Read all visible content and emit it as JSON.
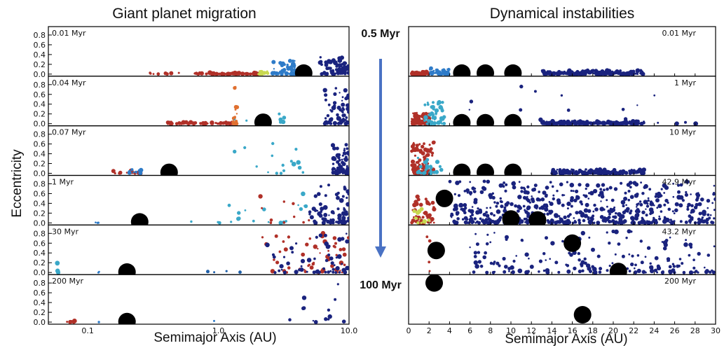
{
  "chart_data": [
    {
      "type": "scatter",
      "title": "Giant planet migration",
      "xlabel": "Semimajor Axis (AU)",
      "ylabel": "Eccentricity",
      "xscale": "log",
      "xlim": [
        0.05,
        10.0
      ],
      "ylim": [
        0,
        0.9
      ],
      "x_ticks": [
        "0.1",
        "1.0",
        "10.0"
      ],
      "y_ticks": [
        "0.0",
        "0.2",
        "0.4",
        "0.6",
        "0.8"
      ],
      "panels": [
        {
          "label": "0.01 Myr",
          "giant_planets": [
            {
              "a": 4.5,
              "e": 0.02
            }
          ],
          "clusters": [
            {
              "amin": 0.3,
              "amax": 2.1,
              "emax": 0.03,
              "n": 70,
              "color": "#b03028"
            },
            {
              "amin": 2.0,
              "amax": 2.6,
              "emax": 0.06,
              "n": 14,
              "color": "#c8d850"
            },
            {
              "amin": 2.5,
              "amax": 3.9,
              "emax": 0.3,
              "n": 45,
              "color": "#2e7bc8"
            },
            {
              "amin": 6.0,
              "amax": 10.0,
              "emax": 0.35,
              "n": 80,
              "color": "#1a237e"
            }
          ]
        },
        {
          "label": "0.04 Myr",
          "giant_planets": [
            {
              "a": 2.2,
              "e": 0.03
            }
          ],
          "clusters": [
            {
              "amin": 0.4,
              "amax": 1.3,
              "emax": 0.03,
              "n": 55,
              "color": "#b03028"
            },
            {
              "amin": 1.3,
              "amax": 1.4,
              "emax": 0.8,
              "n": 18,
              "color": "#e07030"
            },
            {
              "amin": 1.3,
              "amax": 3.5,
              "emax": 0.3,
              "n": 10,
              "color": "#3aa8c8"
            },
            {
              "amin": 6.5,
              "amax": 10.0,
              "emax": 0.75,
              "n": 70,
              "color": "#1a237e"
            }
          ]
        },
        {
          "label": "0.07 Myr",
          "giant_planets": [
            {
              "a": 0.42,
              "e": 0.02
            }
          ],
          "clusters": [
            {
              "amin": 0.15,
              "amax": 0.27,
              "emax": 0.06,
              "n": 14,
              "color": "#b03028"
            },
            {
              "amin": 0.2,
              "amax": 0.27,
              "emax": 0.25,
              "n": 8,
              "color": "#2e7bc8"
            },
            {
              "amin": 1.1,
              "amax": 4.5,
              "emax": 0.65,
              "n": 16,
              "color": "#3aa8c8"
            },
            {
              "amin": 7.5,
              "amax": 10.0,
              "emax": 0.6,
              "n": 70,
              "color": "#1a237e"
            }
          ]
        },
        {
          "label": "1 Myr",
          "giant_planets": [
            {
              "a": 0.25,
              "e": 0.02
            }
          ],
          "clusters": [
            {
              "amin": 0.08,
              "amax": 0.13,
              "emax": 0.02,
              "n": 3,
              "color": "#2e7bc8"
            },
            {
              "amin": 0.5,
              "amax": 5.0,
              "emax": 0.65,
              "n": 20,
              "color": "#3aa8c8"
            },
            {
              "amin": 1.5,
              "amax": 5.0,
              "emax": 0.6,
              "n": 10,
              "color": "#b03028"
            },
            {
              "amin": 5.0,
              "amax": 10.0,
              "emax": 0.85,
              "n": 70,
              "color": "#1a237e"
            }
          ]
        },
        {
          "label": "30 Myr",
          "giant_planets": [
            {
              "a": 0.2,
              "e": 0.01
            }
          ],
          "clusters": [
            {
              "amin": 0.055,
              "amax": 0.06,
              "emax": 0.2,
              "n": 6,
              "color": "#3aa8c8"
            },
            {
              "amin": 0.08,
              "amax": 0.13,
              "emax": 0.02,
              "n": 2,
              "color": "#2e7bc8"
            },
            {
              "amin": 0.5,
              "amax": 1.5,
              "emax": 0.05,
              "n": 4,
              "color": "#1f5fa8"
            },
            {
              "amin": 2.0,
              "amax": 10.0,
              "emax": 0.85,
              "n": 60,
              "color": "#b03028"
            },
            {
              "amin": 2.0,
              "amax": 10.0,
              "emax": 0.85,
              "n": 60,
              "color": "#1a237e"
            }
          ]
        },
        {
          "label": "200 Myr",
          "giant_planets": [
            {
              "a": 0.2,
              "e": 0.01
            }
          ],
          "clusters": [
            {
              "amin": 0.055,
              "amax": 0.08,
              "emax": 0.12,
              "n": 6,
              "color": "#b03028"
            },
            {
              "amin": 0.12,
              "amax": 0.13,
              "emax": 0.01,
              "n": 1,
              "color": "#2e7bc8"
            },
            {
              "amin": 0.9,
              "amax": 0.95,
              "emax": 0.05,
              "n": 1,
              "color": "#2e7bc8"
            },
            {
              "amin": 3.5,
              "amax": 10.0,
              "emax": 0.8,
              "n": 14,
              "color": "#1a237e"
            }
          ]
        }
      ]
    },
    {
      "type": "scatter",
      "title": "Dynamical instabilities",
      "xlabel": "Semimajor Axis (AU)",
      "xlim": [
        0,
        30
      ],
      "ylim": [
        0,
        0.9
      ],
      "x_ticks": [
        "0",
        "2",
        "4",
        "6",
        "8",
        "10",
        "12",
        "14",
        "16",
        "18",
        "20",
        "22",
        "24",
        "26",
        "28",
        "30"
      ],
      "panels": [
        {
          "label": "0.01 Myr",
          "giant_planets": [
            {
              "a": 5.2,
              "e": 0.02
            },
            {
              "a": 7.5,
              "e": 0.02
            },
            {
              "a": 10.2,
              "e": 0.02
            }
          ],
          "clusters": [
            {
              "amin": 0.3,
              "amax": 2.0,
              "emax": 0.05,
              "n": 60,
              "color": "#b03028"
            },
            {
              "amin": 2.0,
              "amax": 4.0,
              "emax": 0.12,
              "n": 40,
              "color": "#2e7bc8"
            },
            {
              "amin": 13.0,
              "amax": 23.0,
              "emax": 0.08,
              "n": 180,
              "color": "#1a237e"
            }
          ]
        },
        {
          "label": "1 Myr",
          "giant_planets": [
            {
              "a": 5.2,
              "e": 0.02
            },
            {
              "a": 7.5,
              "e": 0.02
            },
            {
              "a": 10.2,
              "e": 0.02
            }
          ],
          "clusters": [
            {
              "amin": 0.3,
              "amax": 2.2,
              "emax": 0.25,
              "n": 90,
              "color": "#b03028"
            },
            {
              "amin": 1.5,
              "amax": 3.5,
              "emax": 0.45,
              "n": 50,
              "color": "#3aa8c8"
            },
            {
              "amin": 13.0,
              "amax": 23.0,
              "emax": 0.05,
              "n": 180,
              "color": "#1a237e"
            },
            {
              "amin": 5.0,
              "amax": 29.0,
              "emax": 0.8,
              "n": 22,
              "color": "#1a237e"
            }
          ]
        },
        {
          "label": "10 Myr",
          "giant_planets": [
            {
              "a": 5.2,
              "e": 0.02
            },
            {
              "a": 7.5,
              "e": 0.02
            },
            {
              "a": 10.2,
              "e": 0.02
            }
          ],
          "clusters": [
            {
              "amin": 0.3,
              "amax": 2.5,
              "emax": 0.65,
              "n": 100,
              "color": "#b03028"
            },
            {
              "amin": 0.8,
              "amax": 3.2,
              "emax": 0.4,
              "n": 25,
              "color": "#3aa8c8"
            },
            {
              "amin": 14.0,
              "amax": 23.0,
              "emax": 0.08,
              "n": 160,
              "color": "#1a237e"
            }
          ]
        },
        {
          "label": "42.9 Myr",
          "giant_planets": [
            {
              "a": 3.5,
              "e": 0.5
            },
            {
              "a": 10.0,
              "e": 0.08
            },
            {
              "a": 12.6,
              "e": 0.06
            }
          ],
          "clusters": [
            {
              "amin": 0.3,
              "amax": 2.5,
              "emax": 0.55,
              "n": 50,
              "color": "#b03028"
            },
            {
              "amin": 0.5,
              "amax": 2.0,
              "emax": 0.3,
              "n": 12,
              "color": "#c8d850"
            },
            {
              "amin": 4.0,
              "amax": 30.0,
              "emax": 0.85,
              "n": 600,
              "color": "#1a237e"
            }
          ]
        },
        {
          "label": "43.2 Myr",
          "giant_planets": [
            {
              "a": 2.7,
              "e": 0.45
            },
            {
              "a": 16.0,
              "e": 0.6
            },
            {
              "a": 20.5,
              "e": 0.02
            }
          ],
          "clusters": [
            {
              "amin": 1.8,
              "amax": 2.1,
              "emax": 0.8,
              "n": 4,
              "color": "#b03028"
            },
            {
              "amin": 6.0,
              "amax": 30.0,
              "emax": 0.85,
              "n": 180,
              "color": "#1a237e"
            }
          ]
        },
        {
          "label": "200 Myr",
          "giant_planets": [
            {
              "a": 2.5,
              "e": 0.8
            },
            {
              "a": 17.0,
              "e": 0.15
            }
          ],
          "clusters": []
        }
      ]
    }
  ],
  "timeline": {
    "start_label": "0.5 Myr",
    "end_label": "100 Myr",
    "arrow_color": "#4a72c4"
  }
}
